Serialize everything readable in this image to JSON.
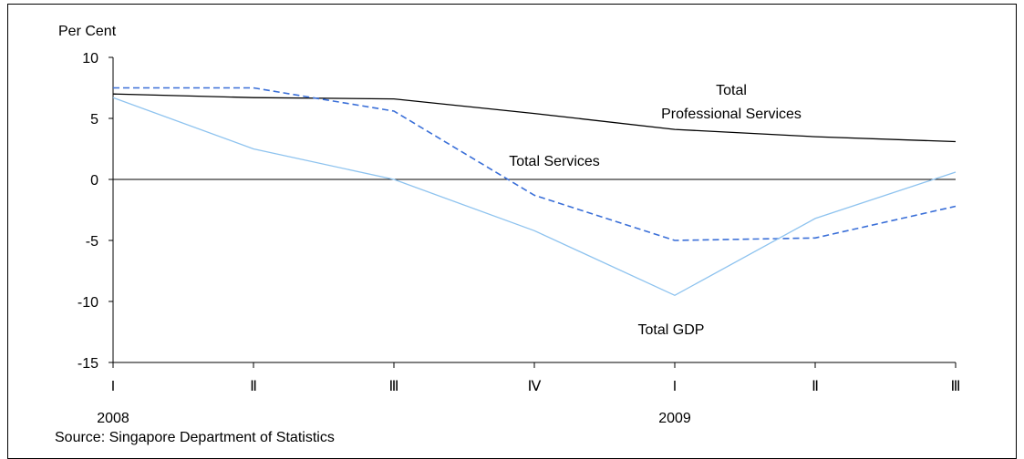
{
  "chart_data": {
    "type": "line",
    "ylabel": "Per Cent",
    "ylim": [
      -15,
      10
    ],
    "yticks": [
      10,
      5,
      0,
      -5,
      -10,
      -15
    ],
    "categories": [
      "I",
      "Ⅱ",
      "Ⅲ",
      "Ⅳ",
      "I",
      "Ⅱ",
      "Ⅲ"
    ],
    "year_labels": [
      {
        "index": 0,
        "label": "2008"
      },
      {
        "index": 4,
        "label": "2009"
      }
    ],
    "series": [
      {
        "name": "Total Professional Services",
        "label_lines": [
          "Total",
          "Professional Services"
        ],
        "color": "#000000",
        "style": "solid",
        "values": [
          7.0,
          6.7,
          6.6,
          5.4,
          4.1,
          3.5,
          3.1
        ]
      },
      {
        "name": "Total Services",
        "label_lines": [
          "Total Services"
        ],
        "color": "#3a6fd8",
        "style": "dashed",
        "values": [
          7.5,
          7.5,
          5.6,
          -1.3,
          -5.0,
          -4.8,
          -2.2
        ]
      },
      {
        "name": "Total GDP",
        "label_lines": [
          "Total GDP"
        ],
        "color": "#8ec3ef",
        "style": "solid",
        "values": [
          6.7,
          2.5,
          0.0,
          -4.2,
          -9.5,
          -3.2,
          0.6
        ]
      }
    ],
    "source": "Source: Singapore Department of Statistics",
    "grid": false
  }
}
